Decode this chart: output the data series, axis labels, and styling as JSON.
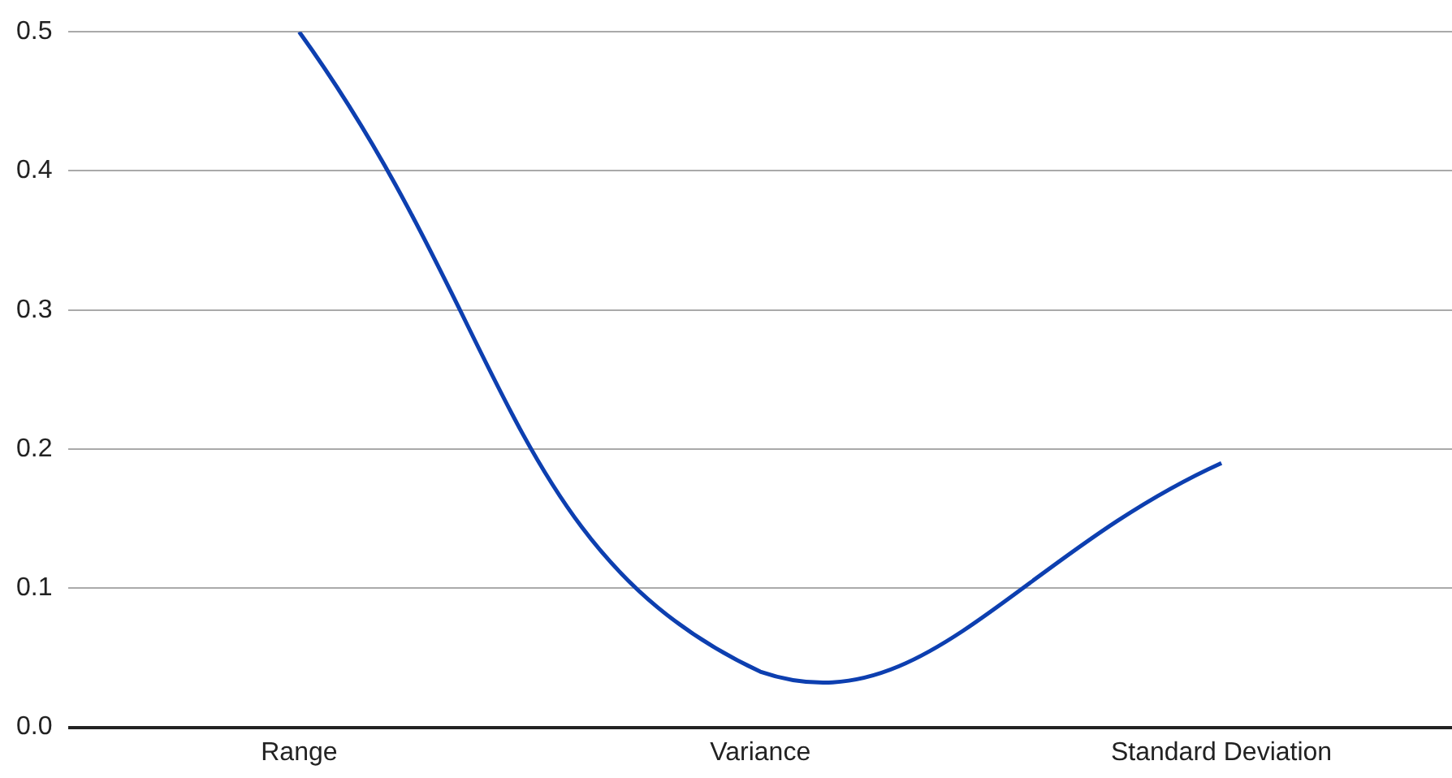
{
  "chart_data": {
    "type": "line",
    "categories": [
      "Range",
      "Variance",
      "Standard Deviation"
    ],
    "series": [
      {
        "color": "#0d3fb0",
        "values": [
          0.5,
          0.04,
          0.19
        ]
      }
    ],
    "ylim": [
      0,
      0.5
    ],
    "yticks": [
      {
        "value": 0,
        "label": "0.0"
      },
      0.1,
      0.2,
      0.3,
      0.4,
      0.5
    ],
    "grid": "y",
    "legend": false,
    "marker": "none"
  }
}
